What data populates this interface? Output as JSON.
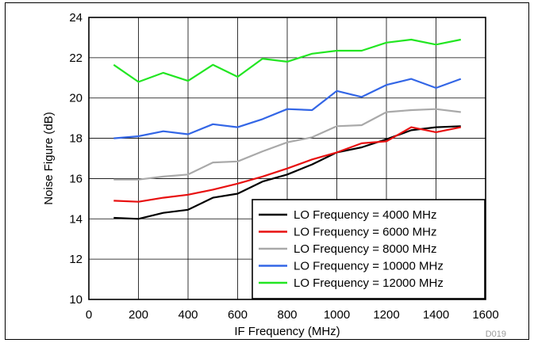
{
  "chart_data": {
    "type": "line",
    "xlabel": "IF Frequency (MHz)",
    "ylabel": "Noise Figure (dB)",
    "xlim": [
      0,
      1600
    ],
    "ylim": [
      10,
      24
    ],
    "xticks": [
      0,
      200,
      400,
      600,
      800,
      1000,
      1200,
      1400,
      1600
    ],
    "yticks": [
      10,
      12,
      14,
      16,
      18,
      20,
      22,
      24
    ],
    "grid": true,
    "legend_position": "bottom-right",
    "figure_id": "D019",
    "x": [
      100,
      200,
      300,
      400,
      500,
      600,
      700,
      800,
      900,
      1000,
      1100,
      1200,
      1300,
      1400,
      1500
    ],
    "series": [
      {
        "name": "LO Frequency = 4000 MHz",
        "color": "#000000",
        "values": [
          14.05,
          14.0,
          14.3,
          14.45,
          15.05,
          15.25,
          15.85,
          16.2,
          16.7,
          17.3,
          17.55,
          17.95,
          18.4,
          18.55,
          18.6
        ]
      },
      {
        "name": "LO Frequency = 6000 MHz",
        "color": "#e81010",
        "values": [
          14.9,
          14.85,
          15.05,
          15.2,
          15.45,
          15.75,
          16.1,
          16.5,
          16.95,
          17.3,
          17.75,
          17.85,
          18.55,
          18.3,
          18.55
        ]
      },
      {
        "name": "LO Frequency = 8000 MHz",
        "color": "#a9a9a9",
        "values": [
          15.95,
          15.95,
          16.1,
          16.2,
          16.8,
          16.85,
          17.35,
          17.8,
          18.05,
          18.6,
          18.65,
          19.3,
          19.4,
          19.45,
          19.3
        ]
      },
      {
        "name": "LO Frequency = 10000 MHz",
        "color": "#3366e6",
        "values": [
          18.0,
          18.1,
          18.35,
          18.2,
          18.7,
          18.55,
          18.95,
          19.45,
          19.4,
          20.35,
          20.05,
          20.65,
          20.95,
          20.5,
          20.95
        ]
      },
      {
        "name": "LO Frequency = 12000 MHz",
        "color": "#22e622",
        "values": [
          21.65,
          20.8,
          21.25,
          20.85,
          21.65,
          21.05,
          21.95,
          21.8,
          22.2,
          22.35,
          22.35,
          22.75,
          22.9,
          22.65,
          22.9
        ]
      }
    ]
  }
}
